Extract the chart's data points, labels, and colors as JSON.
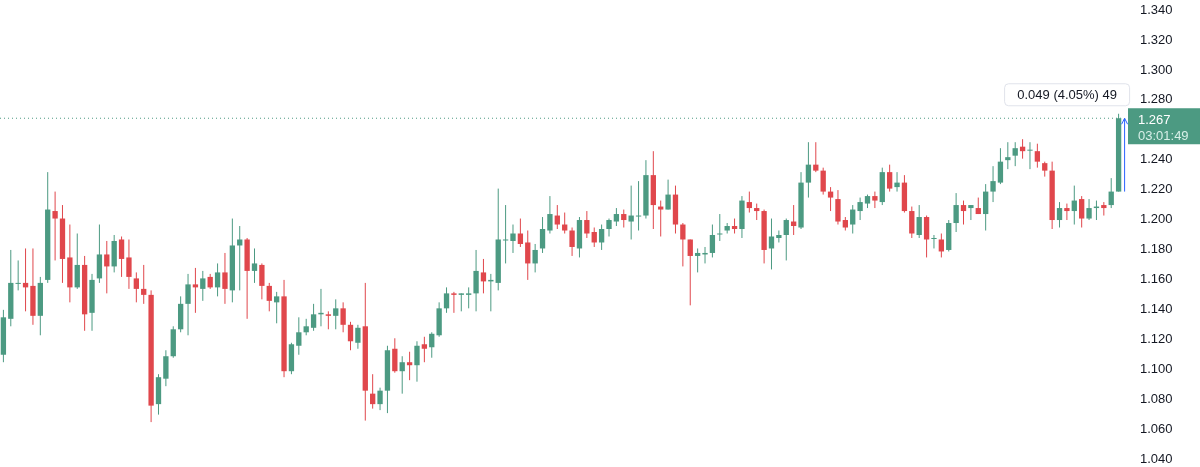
{
  "chart_data": {
    "type": "candlestick",
    "categories": [
      null,
      null,
      null,
      null,
      null,
      null,
      null,
      null,
      null,
      null,
      null,
      null,
      null,
      null,
      null,
      null,
      null,
      null,
      null,
      null,
      null,
      null,
      null,
      null,
      null,
      null,
      null,
      null,
      null,
      null,
      null,
      null,
      null,
      null,
      null,
      null,
      null,
      null,
      null,
      null,
      null,
      null,
      null,
      null,
      null,
      null,
      null,
      null,
      null,
      null,
      null,
      null,
      null,
      null,
      null,
      null,
      null,
      null,
      null,
      null,
      null,
      null,
      null,
      null,
      null,
      null,
      null,
      null,
      null,
      null,
      null,
      null,
      null,
      null,
      null,
      null,
      null,
      null,
      null,
      null,
      null,
      null,
      null,
      null,
      null,
      null,
      null,
      null,
      null,
      null,
      null,
      null,
      null,
      null,
      null,
      null,
      null,
      null,
      null,
      null,
      null,
      null,
      null,
      null,
      null,
      null,
      null,
      null,
      null,
      null,
      null,
      null,
      null,
      null,
      null,
      null,
      null,
      null,
      null,
      null,
      null,
      null,
      null,
      null,
      null,
      null,
      null,
      null,
      null,
      null,
      null,
      null,
      null,
      null,
      null,
      null,
      null,
      null,
      null,
      null,
      null,
      null,
      null,
      null,
      null,
      null,
      null,
      null,
      null,
      null,
      null,
      null
    ],
    "ohlc": [
      [
        1.109,
        1.139,
        1.104,
        1.134
      ],
      [
        1.133,
        1.179,
        1.128,
        1.157
      ],
      [
        1.157,
        1.172,
        1.152,
        1.157
      ],
      [
        1.157,
        1.18,
        1.138,
        1.154
      ],
      [
        1.155,
        1.18,
        1.129,
        1.135
      ],
      [
        1.135,
        1.161,
        1.122,
        1.157
      ],
      [
        1.159,
        1.231,
        1.157,
        1.206
      ],
      [
        1.205,
        1.218,
        1.172,
        1.2
      ],
      [
        1.2,
        1.209,
        1.157,
        1.173
      ],
      [
        1.174,
        1.196,
        1.144,
        1.154
      ],
      [
        1.154,
        1.19,
        1.153,
        1.169
      ],
      [
        1.169,
        1.175,
        1.125,
        1.136
      ],
      [
        1.137,
        1.163,
        1.125,
        1.159
      ],
      [
        1.16,
        1.196,
        1.157,
        1.176
      ],
      [
        1.176,
        1.185,
        1.15,
        1.168
      ],
      [
        1.168,
        1.189,
        1.164,
        1.185
      ],
      [
        1.186,
        1.188,
        1.161,
        1.173
      ],
      [
        1.174,
        1.186,
        1.153,
        1.161
      ],
      [
        1.16,
        1.164,
        1.144,
        1.153
      ],
      [
        1.153,
        1.169,
        1.143,
        1.149
      ],
      [
        1.149,
        1.152,
        1.064,
        1.075
      ],
      [
        1.076,
        1.096,
        1.069,
        1.094
      ],
      [
        1.093,
        1.112,
        1.088,
        1.108
      ],
      [
        1.108,
        1.128,
        1.107,
        1.126
      ],
      [
        1.126,
        1.148,
        1.124,
        1.143
      ],
      [
        1.143,
        1.163,
        1.122,
        1.156
      ],
      [
        1.156,
        1.167,
        1.137,
        1.154
      ],
      [
        1.153,
        1.165,
        1.145,
        1.16
      ],
      [
        1.161,
        1.163,
        1.153,
        1.154
      ],
      [
        1.154,
        1.17,
        1.148,
        1.164
      ],
      [
        1.164,
        1.177,
        1.143,
        1.153
      ],
      [
        1.152,
        1.2,
        1.144,
        1.182
      ],
      [
        1.182,
        1.195,
        1.152,
        1.186
      ],
      [
        1.186,
        1.187,
        1.133,
        1.165
      ],
      [
        1.165,
        1.18,
        1.157,
        1.17
      ],
      [
        1.169,
        1.17,
        1.146,
        1.155
      ],
      [
        1.155,
        1.157,
        1.138,
        1.145
      ],
      [
        1.144,
        1.151,
        1.13,
        1.148
      ],
      [
        1.148,
        1.159,
        1.094,
        1.098
      ],
      [
        1.098,
        1.117,
        1.096,
        1.116
      ],
      [
        1.115,
        1.134,
        1.109,
        1.124
      ],
      [
        1.124,
        1.133,
        1.122,
        1.128
      ],
      [
        1.127,
        1.143,
        1.125,
        1.136
      ],
      [
        1.136,
        1.153,
        1.128,
        1.137
      ],
      [
        1.136,
        1.138,
        1.126,
        1.135
      ],
      [
        1.135,
        1.146,
        1.126,
        1.14
      ],
      [
        1.14,
        1.144,
        1.124,
        1.129
      ],
      [
        1.129,
        1.131,
        1.112,
        1.118
      ],
      [
        1.117,
        1.129,
        1.113,
        1.127
      ],
      [
        1.128,
        1.157,
        1.065,
        1.085
      ],
      [
        1.083,
        1.096,
        1.073,
        1.076
      ],
      [
        1.076,
        1.087,
        1.072,
        1.085
      ],
      [
        1.085,
        1.115,
        1.07,
        1.112
      ],
      [
        1.113,
        1.12,
        1.097,
        1.098
      ],
      [
        1.098,
        1.108,
        1.083,
        1.104
      ],
      [
        1.104,
        1.111,
        1.092,
        1.102
      ],
      [
        1.102,
        1.118,
        1.091,
        1.115
      ],
      [
        1.116,
        1.121,
        1.104,
        1.113
      ],
      [
        1.114,
        1.124,
        1.107,
        1.123
      ],
      [
        1.122,
        1.144,
        1.121,
        1.14
      ],
      [
        1.14,
        1.154,
        1.137,
        1.15
      ],
      [
        1.15,
        1.151,
        1.137,
        1.149
      ],
      [
        1.149,
        1.15,
        1.138,
        1.15
      ],
      [
        1.149,
        1.154,
        1.14,
        1.15
      ],
      [
        1.15,
        1.179,
        1.138,
        1.165
      ],
      [
        1.164,
        1.173,
        1.15,
        1.158
      ],
      [
        1.158,
        1.163,
        1.138,
        1.159
      ],
      [
        1.157,
        1.22,
        1.152,
        1.186
      ],
      [
        1.186,
        1.209,
        1.17,
        1.186
      ],
      [
        1.185,
        1.196,
        1.177,
        1.19
      ],
      [
        1.19,
        1.2,
        1.181,
        1.183
      ],
      [
        1.184,
        1.192,
        1.159,
        1.17
      ],
      [
        1.17,
        1.183,
        1.164,
        1.179
      ],
      [
        1.18,
        1.201,
        1.177,
        1.193
      ],
      [
        1.192,
        1.215,
        1.19,
        1.203
      ],
      [
        1.202,
        1.209,
        1.193,
        1.196
      ],
      [
        1.196,
        1.204,
        1.19,
        1.192
      ],
      [
        1.192,
        1.194,
        1.175,
        1.181
      ],
      [
        1.18,
        1.201,
        1.174,
        1.199
      ],
      [
        1.199,
        1.205,
        1.187,
        1.19
      ],
      [
        1.191,
        1.194,
        1.181,
        1.184
      ],
      [
        1.184,
        1.196,
        1.179,
        1.193
      ],
      [
        1.193,
        1.2,
        1.188,
        1.199
      ],
      [
        1.198,
        1.207,
        1.195,
        1.203
      ],
      [
        1.203,
        1.206,
        1.194,
        1.199
      ],
      [
        1.198,
        1.222,
        1.186,
        1.202
      ],
      [
        1.202,
        1.225,
        1.192,
        1.202
      ],
      [
        1.202,
        1.239,
        1.2,
        1.229
      ],
      [
        1.229,
        1.245,
        1.193,
        1.209
      ],
      [
        1.208,
        1.212,
        1.188,
        1.206
      ],
      [
        1.206,
        1.226,
        1.206,
        1.216
      ],
      [
        1.216,
        1.222,
        1.19,
        1.196
      ],
      [
        1.196,
        1.197,
        1.168,
        1.186
      ],
      [
        1.186,
        1.186,
        1.142,
        1.175
      ],
      [
        1.175,
        1.18,
        1.164,
        1.177
      ],
      [
        1.176,
        1.181,
        1.17,
        1.177
      ],
      [
        1.177,
        1.196,
        1.174,
        1.189
      ],
      [
        1.19,
        1.203,
        1.185,
        1.19
      ],
      [
        1.192,
        1.197,
        1.19,
        1.195
      ],
      [
        1.195,
        1.2,
        1.19,
        1.193
      ],
      [
        1.193,
        1.215,
        1.187,
        1.212
      ],
      [
        1.211,
        1.218,
        1.204,
        1.207
      ],
      [
        1.207,
        1.21,
        1.199,
        1.205
      ],
      [
        1.205,
        1.206,
        1.17,
        1.179
      ],
      [
        1.18,
        1.2,
        1.166,
        1.188
      ],
      [
        1.187,
        1.192,
        1.184,
        1.189
      ],
      [
        1.189,
        1.2,
        1.172,
        1.199
      ],
      [
        1.198,
        1.209,
        1.189,
        1.195
      ],
      [
        1.194,
        1.231,
        1.193,
        1.224
      ],
      [
        1.224,
        1.251,
        1.214,
        1.236
      ],
      [
        1.236,
        1.251,
        1.231,
        1.232
      ],
      [
        1.232,
        1.234,
        1.216,
        1.218
      ],
      [
        1.218,
        1.221,
        1.205,
        1.214
      ],
      [
        1.213,
        1.219,
        1.196,
        1.198
      ],
      [
        1.199,
        1.201,
        1.192,
        1.194
      ],
      [
        1.196,
        1.209,
        1.19,
        1.206
      ],
      [
        1.205,
        1.214,
        1.199,
        1.211
      ],
      [
        1.21,
        1.216,
        1.207,
        1.215
      ],
      [
        1.215,
        1.218,
        1.207,
        1.212
      ],
      [
        1.211,
        1.234,
        1.209,
        1.231
      ],
      [
        1.231,
        1.236,
        1.218,
        1.22
      ],
      [
        1.221,
        1.231,
        1.218,
        1.224
      ],
      [
        1.224,
        1.229,
        1.204,
        1.205
      ],
      [
        1.205,
        1.208,
        1.187,
        1.19
      ],
      [
        1.189,
        1.209,
        1.187,
        1.201
      ],
      [
        1.201,
        1.202,
        1.174,
        1.186
      ],
      [
        1.187,
        1.189,
        1.18,
        1.187
      ],
      [
        1.186,
        1.19,
        1.174,
        1.178
      ],
      [
        1.179,
        1.199,
        1.178,
        1.197
      ],
      [
        1.197,
        1.217,
        1.191,
        1.209
      ],
      [
        1.209,
        1.212,
        1.196,
        1.205
      ],
      [
        1.207,
        1.209,
        1.199,
        1.209
      ],
      [
        1.207,
        1.214,
        1.203,
        1.203
      ],
      [
        1.203,
        1.223,
        1.192,
        1.218
      ],
      [
        1.218,
        1.235,
        1.211,
        1.225
      ],
      [
        1.224,
        1.247,
        1.223,
        1.238
      ],
      [
        1.239,
        1.251,
        1.233,
        1.241
      ],
      [
        1.242,
        1.251,
        1.235,
        1.247
      ],
      [
        1.248,
        1.253,
        1.24,
        1.245
      ],
      [
        1.246,
        1.251,
        1.233,
        1.246
      ],
      [
        1.245,
        1.25,
        1.234,
        1.238
      ],
      [
        1.237,
        1.238,
        1.228,
        1.232
      ],
      [
        1.232,
        1.238,
        1.193,
        1.199
      ],
      [
        1.199,
        1.211,
        1.194,
        1.207
      ],
      [
        1.207,
        1.21,
        1.199,
        1.205
      ],
      [
        1.205,
        1.222,
        1.196,
        1.212
      ],
      [
        1.213,
        1.215,
        1.194,
        1.2
      ],
      [
        1.2,
        1.213,
        1.199,
        1.207
      ],
      [
        1.207,
        1.212,
        1.199,
        1.208
      ],
      [
        1.209,
        1.211,
        1.202,
        1.207
      ],
      [
        1.209,
        1.227,
        1.207,
        1.218
      ],
      [
        1.218,
        1.27,
        1.218,
        1.267
      ]
    ],
    "ylim": [
      1.034,
      1.346
    ],
    "yticks": [
      {
        "value": 1.04,
        "label": "1.040"
      },
      {
        "value": 1.06,
        "label": "1.060"
      },
      {
        "value": 1.08,
        "label": "1.080"
      },
      {
        "value": 1.1,
        "label": "1.100"
      },
      {
        "value": 1.12,
        "label": "1.120"
      },
      {
        "value": 1.14,
        "label": "1.140"
      },
      {
        "value": 1.16,
        "label": "1.160"
      },
      {
        "value": 1.18,
        "label": "1.180"
      },
      {
        "value": 1.2,
        "label": "1.200"
      },
      {
        "value": 1.22,
        "label": "1.220"
      },
      {
        "value": 1.24,
        "label": "1.240"
      },
      {
        "value": 1.28,
        "label": "1.280"
      },
      {
        "value": 1.3,
        "label": "1.300"
      },
      {
        "value": 1.32,
        "label": "1.320"
      },
      {
        "value": 1.34,
        "label": "1.340"
      }
    ],
    "tick_labels": "y",
    "ref_lines": [
      {
        "axis": "y",
        "value": 1.267,
        "label": "1.267",
        "color": "#4c9a82",
        "line_style": "dotted"
      }
    ],
    "annotations": [
      "0.049 (4.05%) 49",
      "03:01:49"
    ]
  }
}
